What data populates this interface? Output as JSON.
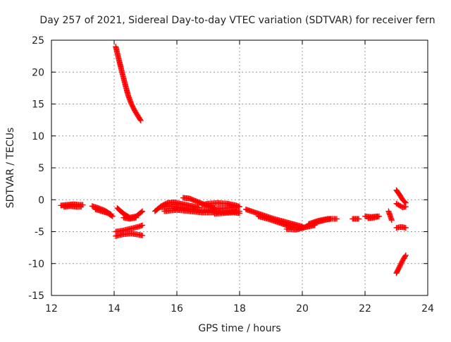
{
  "chart_data": {
    "type": "scatter",
    "title": "Day 257 of 2021, Sidereal Day-to-day VTEC variation (SDTVAR) for receiver fern",
    "xlabel": "GPS time / hours",
    "ylabel": "SDTVAR / TECUs",
    "xlim": [
      12,
      24
    ],
    "ylim": [
      -15,
      25
    ],
    "xticks": [
      "12",
      "14",
      "16",
      "18",
      "20",
      "22",
      "24"
    ],
    "yticks": [
      "-15",
      "-10",
      "-5",
      "0",
      "5",
      "10",
      "15",
      "20",
      "25"
    ],
    "grid": true,
    "marker": "+",
    "color": "#ff0000",
    "series": [
      {
        "name": "seg1",
        "x": [
          12.3,
          12.5,
          12.7,
          12.9,
          13.0
        ],
        "y": [
          -0.9,
          -0.8,
          -0.7,
          -0.8,
          -0.8
        ]
      },
      {
        "name": "seg2",
        "x": [
          12.4,
          12.6,
          12.8,
          12.95
        ],
        "y": [
          -1.1,
          -1.0,
          -1.1,
          -1.1
        ]
      },
      {
        "name": "seg3",
        "x": [
          13.3,
          13.5,
          13.7,
          13.9
        ],
        "y": [
          -1.0,
          -1.3,
          -1.7,
          -2.3
        ]
      },
      {
        "name": "seg4",
        "x": [
          13.4,
          13.6,
          13.8,
          13.95
        ],
        "y": [
          -1.5,
          -1.8,
          -2.1,
          -2.6
        ]
      },
      {
        "name": "seg5",
        "x": [
          14.05,
          14.15,
          14.25,
          14.35,
          14.45,
          14.55,
          14.65,
          14.75,
          14.85
        ],
        "y": [
          24.0,
          22.0,
          20.0,
          18.1,
          16.3,
          15.0,
          14.0,
          13.2,
          12.4
        ]
      },
      {
        "name": "seg6",
        "x": [
          14.1,
          14.3,
          14.5,
          14.7,
          14.9
        ],
        "y": [
          -1.3,
          -2.2,
          -2.8,
          -2.6,
          -1.8
        ]
      },
      {
        "name": "seg7",
        "x": [
          14.3,
          14.5,
          14.7
        ],
        "y": [
          -2.8,
          -3.0,
          -2.8
        ]
      },
      {
        "name": "seg8",
        "x": [
          14.05,
          14.3,
          14.55,
          14.8,
          14.9
        ],
        "y": [
          -5.0,
          -4.8,
          -4.5,
          -4.2,
          -4.0
        ]
      },
      {
        "name": "seg9",
        "x": [
          14.05,
          14.3,
          14.55,
          14.8,
          14.9
        ],
        "y": [
          -5.7,
          -5.4,
          -5.3,
          -5.5,
          -5.6
        ]
      },
      {
        "name": "seg10",
        "x": [
          15.3,
          15.5,
          15.7,
          15.9,
          16.1,
          16.3,
          16.5,
          16.7
        ],
        "y": [
          -1.8,
          -1.0,
          -0.5,
          -0.4,
          -0.6,
          -0.8,
          -1.0,
          -1.2
        ]
      },
      {
        "name": "seg11",
        "x": [
          15.5,
          15.8,
          16.1,
          16.4,
          16.7,
          17.0,
          17.3,
          17.6,
          17.9
        ],
        "y": [
          -1.2,
          -1.0,
          -1.2,
          -1.5,
          -1.7,
          -1.6,
          -1.4,
          -1.3,
          -1.2
        ]
      },
      {
        "name": "seg12",
        "x": [
          15.6,
          16.0,
          16.4,
          16.8,
          17.2,
          17.6,
          18.0
        ],
        "y": [
          -1.8,
          -1.6,
          -1.8,
          -2.0,
          -2.0,
          -1.9,
          -1.8
        ]
      },
      {
        "name": "seg13",
        "x": [
          16.2,
          16.4,
          16.6,
          16.8,
          17.0,
          17.2
        ],
        "y": [
          0.3,
          0.2,
          -0.2,
          -0.6,
          -1.0,
          -1.3
        ]
      },
      {
        "name": "seg14",
        "x": [
          16.8,
          17.0,
          17.3,
          17.6,
          17.9,
          18.0
        ],
        "y": [
          -0.8,
          -0.6,
          -0.5,
          -0.6,
          -0.9,
          -1.1
        ]
      },
      {
        "name": "seg15",
        "x": [
          17.2,
          17.5,
          17.8,
          18.0
        ],
        "y": [
          -2.2,
          -2.1,
          -2.0,
          -2.1
        ]
      },
      {
        "name": "seg16",
        "x": [
          18.2,
          18.5,
          18.8,
          19.1,
          19.4,
          19.7,
          20.0
        ],
        "y": [
          -1.5,
          -2.0,
          -2.5,
          -3.0,
          -3.4,
          -3.8,
          -4.2
        ]
      },
      {
        "name": "seg17",
        "x": [
          18.6,
          18.9,
          19.2,
          19.5,
          19.8,
          20.1,
          20.4
        ],
        "y": [
          -2.6,
          -3.0,
          -3.5,
          -4.0,
          -4.4,
          -4.3,
          -4.0
        ]
      },
      {
        "name": "seg18",
        "x": [
          19.5,
          19.8,
          20.1,
          20.4,
          20.7,
          20.9
        ],
        "y": [
          -4.6,
          -4.7,
          -4.3,
          -3.6,
          -3.2,
          -3.0
        ]
      },
      {
        "name": "seg19",
        "x": [
          20.2,
          20.5,
          20.8,
          21.1
        ],
        "y": [
          -3.8,
          -3.3,
          -3.0,
          -3.0
        ]
      },
      {
        "name": "seg20",
        "x": [
          21.6,
          21.8
        ],
        "y": [
          -3.0,
          -3.0
        ]
      },
      {
        "name": "seg21",
        "x": [
          22.0,
          22.2,
          22.4
        ],
        "y": [
          -2.6,
          -2.7,
          -2.6
        ]
      },
      {
        "name": "seg22",
        "x": [
          22.1,
          22.3,
          22.45
        ],
        "y": [
          -2.9,
          -2.8,
          -2.6
        ]
      },
      {
        "name": "seg23",
        "x": [
          22.75,
          22.8,
          22.85
        ],
        "y": [
          -1.8,
          -2.5,
          -3.2
        ]
      },
      {
        "name": "seg24",
        "x": [
          23.0,
          23.1,
          23.2,
          23.3
        ],
        "y": [
          1.5,
          0.8,
          0.0,
          -0.5
        ]
      },
      {
        "name": "seg25",
        "x": [
          23.0,
          23.1,
          23.2,
          23.3
        ],
        "y": [
          -0.6,
          -0.9,
          -1.2,
          -1.1
        ]
      },
      {
        "name": "seg26",
        "x": [
          23.0,
          23.1,
          23.2,
          23.3
        ],
        "y": [
          -4.4,
          -4.3,
          -4.3,
          -4.4
        ]
      },
      {
        "name": "seg27",
        "x": [
          23.0,
          23.1,
          23.2,
          23.3
        ],
        "y": [
          -11.5,
          -10.5,
          -9.5,
          -8.7
        ]
      }
    ]
  }
}
